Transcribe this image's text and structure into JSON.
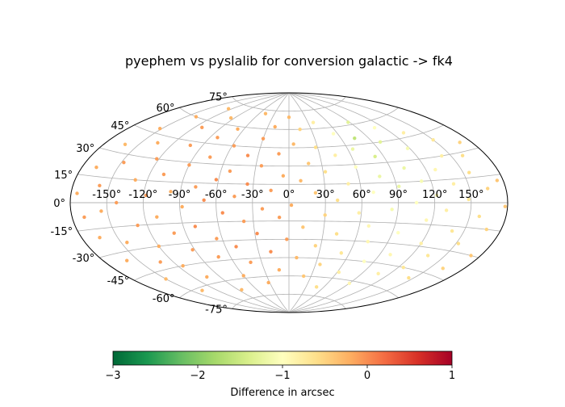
{
  "chart_data": {
    "type": "scatter",
    "projection": "aitoff",
    "title": "pyephem vs pyslalib for conversion galactic -> fk4",
    "longitude_ticks": [
      -150,
      -120,
      -90,
      -60,
      -30,
      0,
      30,
      60,
      90,
      120,
      150
    ],
    "longitude_tick_labels": [
      "-150°",
      "-120°",
      "-90°",
      "-60°",
      "-30°",
      "0°",
      "30°",
      "60°",
      "90°",
      "120°",
      "150°"
    ],
    "latitude_ticks": [
      -75,
      -60,
      -45,
      -30,
      -15,
      0,
      15,
      30,
      45,
      60,
      75
    ],
    "latitude_tick_labels": [
      "-75°",
      "-60°",
      "-45°",
      "-30°",
      "-15°",
      "0°",
      "15°",
      "30°",
      "45°",
      "60°",
      "75°"
    ],
    "grid": true,
    "colorbar": {
      "label": "Difference in arcsec",
      "min": -3,
      "max": 1,
      "ticks": [
        -3,
        -2,
        -1,
        0,
        1
      ],
      "tick_labels": [
        "−3",
        "−2",
        "−1",
        "0",
        "1"
      ],
      "colormap": "RdYlGn_r",
      "orientation": "horizontal",
      "placement": "bottom"
    },
    "points": [
      [
        -175,
        5,
        -0.2
      ],
      [
        -170,
        -8,
        -0.1
      ],
      [
        -168,
        20,
        -0.2
      ],
      [
        -165,
        -20,
        -0.2
      ],
      [
        -162,
        35,
        -0.3
      ],
      [
        -160,
        -35,
        -0.2
      ],
      [
        -158,
        10,
        -0.1
      ],
      [
        -155,
        -5,
        -0.2
      ],
      [
        -152,
        48,
        -0.2
      ],
      [
        -150,
        -50,
        -0.3
      ],
      [
        -148,
        25,
        -0.1
      ],
      [
        -145,
        -25,
        -0.2
      ],
      [
        -142,
        0,
        -0.1
      ],
      [
        -140,
        60,
        -0.2
      ],
      [
        -138,
        -62,
        -0.3
      ],
      [
        -135,
        40,
        -0.2
      ],
      [
        -132,
        -40,
        -0.1
      ],
      [
        -130,
        15,
        -0.2
      ],
      [
        -128,
        -15,
        -0.1
      ],
      [
        -125,
        70,
        -0.3
      ],
      [
        -122,
        30,
        -0.1
      ],
      [
        -120,
        -30,
        -0.2
      ],
      [
        -118,
        5,
        -0.1
      ],
      [
        -115,
        -45,
        -0.2
      ],
      [
        -112,
        55,
        -0.1
      ],
      [
        -110,
        -10,
        -0.2
      ],
      [
        -108,
        20,
        -0.1
      ],
      [
        -105,
        -55,
        -0.2
      ],
      [
        -102,
        42,
        -0.1
      ],
      [
        -100,
        -22,
        -0.1
      ],
      [
        -98,
        8,
        -0.2
      ],
      [
        -95,
        65,
        -0.3
      ],
      [
        -92,
        -35,
        -0.1
      ],
      [
        -90,
        28,
        -0.1
      ],
      [
        -88,
        -3,
        -0.2
      ],
      [
        -85,
        -68,
        -0.3
      ],
      [
        -82,
        50,
        -0.1
      ],
      [
        -80,
        -18,
        0.0
      ],
      [
        -78,
        12,
        -0.1
      ],
      [
        -75,
        35,
        -0.1
      ],
      [
        -72,
        -42,
        -0.1
      ],
      [
        -70,
        2,
        0.0
      ],
      [
        -68,
        58,
        -0.2
      ],
      [
        -65,
        -28,
        -0.1
      ],
      [
        -62,
        18,
        0.0
      ],
      [
        -60,
        -58,
        -0.2
      ],
      [
        -58,
        45,
        -0.1
      ],
      [
        -55,
        -8,
        0.0
      ],
      [
        -52,
        25,
        -0.1
      ],
      [
        -50,
        -35,
        0.0
      ],
      [
        -48,
        72,
        -0.3
      ],
      [
        -45,
        5,
        -0.1
      ],
      [
        -42,
        -48,
        -0.1
      ],
      [
        -40,
        38,
        0.0
      ],
      [
        -38,
        -15,
        -0.1
      ],
      [
        -35,
        15,
        0.0
      ],
      [
        -32,
        -65,
        -0.2
      ],
      [
        -30,
        52,
        -0.1
      ],
      [
        -28,
        -25,
        0.0
      ],
      [
        -25,
        30,
        -0.1
      ],
      [
        -22,
        -5,
        -0.1
      ],
      [
        -20,
        62,
        -0.2
      ],
      [
        -18,
        -40,
        0.0
      ],
      [
        -15,
        10,
        -0.1
      ],
      [
        -12,
        -55,
        -0.2
      ],
      [
        -10,
        40,
        -0.1
      ],
      [
        -8,
        -12,
        -0.1
      ],
      [
        -5,
        22,
        -0.2
      ],
      [
        -2,
        -30,
        -0.1
      ],
      [
        0,
        70,
        -0.3
      ],
      [
        2,
        -2,
        -0.2
      ],
      [
        5,
        48,
        -0.3
      ],
      [
        8,
        -45,
        -0.3
      ],
      [
        10,
        18,
        -0.3
      ],
      [
        12,
        -20,
        -0.4
      ],
      [
        15,
        60,
        -0.5
      ],
      [
        18,
        32,
        -0.4
      ],
      [
        20,
        -60,
        -0.4
      ],
      [
        22,
        8,
        -0.4
      ],
      [
        25,
        -35,
        -0.5
      ],
      [
        28,
        45,
        -0.6
      ],
      [
        30,
        -10,
        -0.5
      ],
      [
        32,
        25,
        -0.6
      ],
      [
        35,
        -50,
        -0.5
      ],
      [
        38,
        65,
        -0.8
      ],
      [
        40,
        2,
        -0.6
      ],
      [
        42,
        -25,
        -0.6
      ],
      [
        45,
        38,
        -0.8
      ],
      [
        48,
        -68,
        -0.6
      ],
      [
        50,
        15,
        -0.8
      ],
      [
        52,
        -40,
        -0.7
      ],
      [
        55,
        55,
        -1.0
      ],
      [
        58,
        -8,
        -0.8
      ],
      [
        60,
        28,
        -1.0
      ],
      [
        62,
        -55,
        -0.8
      ],
      [
        65,
        42,
        -1.2
      ],
      [
        68,
        -18,
        -0.9
      ],
      [
        70,
        8,
        -1.0
      ],
      [
        72,
        -30,
        -0.9
      ],
      [
        75,
        50,
        -1.6
      ],
      [
        78,
        20,
        -1.2
      ],
      [
        80,
        -45,
        -1.0
      ],
      [
        82,
        35,
        -1.4
      ],
      [
        85,
        -5,
        -1.1
      ],
      [
        88,
        62,
        -1.3
      ],
      [
        90,
        -62,
        -0.9
      ],
      [
        92,
        12,
        -1.2
      ],
      [
        95,
        -22,
        -1.0
      ],
      [
        98,
        45,
        -1.3
      ],
      [
        100,
        -38,
        -0.9
      ],
      [
        102,
        25,
        -1.2
      ],
      [
        105,
        0,
        -1.0
      ],
      [
        108,
        -52,
        -0.8
      ],
      [
        110,
        55,
        -1.0
      ],
      [
        112,
        15,
        -1.1
      ],
      [
        115,
        -12,
        -0.9
      ],
      [
        118,
        38,
        -1.1
      ],
      [
        120,
        -28,
        -0.8
      ],
      [
        122,
        5,
        -0.9
      ],
      [
        125,
        -45,
        -0.7
      ],
      [
        128,
        22,
        -0.9
      ],
      [
        130,
        -5,
        -0.8
      ],
      [
        132,
        48,
        -0.8
      ],
      [
        135,
        -35,
        -0.7
      ],
      [
        138,
        12,
        -0.8
      ],
      [
        140,
        -18,
        -0.7
      ],
      [
        142,
        30,
        -0.8
      ],
      [
        145,
        -50,
        -0.6
      ],
      [
        148,
        2,
        -0.7
      ],
      [
        150,
        40,
        -0.7
      ],
      [
        152,
        -25,
        -0.6
      ],
      [
        155,
        18,
        -0.6
      ],
      [
        158,
        -8,
        -0.6
      ],
      [
        160,
        28,
        -0.6
      ],
      [
        162,
        -40,
        -0.5
      ],
      [
        165,
        8,
        -0.5
      ],
      [
        168,
        -15,
        -0.5
      ],
      [
        170,
        35,
        -0.5
      ],
      [
        172,
        -30,
        -0.4
      ],
      [
        175,
        12,
        -0.4
      ],
      [
        178,
        -2,
        -0.4
      ]
    ]
  }
}
